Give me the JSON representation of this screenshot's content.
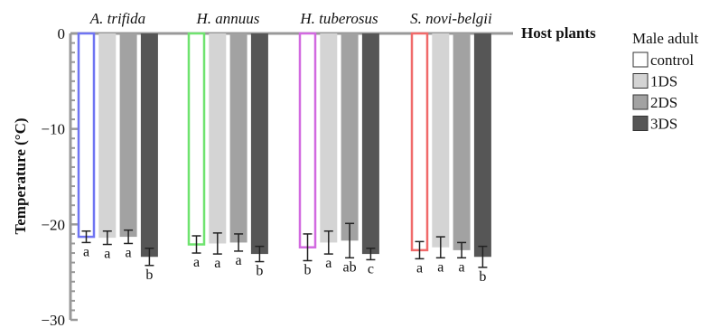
{
  "chart_data": {
    "type": "bar",
    "ylabel": "Temperature (°C)",
    "ylim": [
      -30,
      0
    ],
    "yticks": [
      0,
      -10,
      -20,
      -30
    ],
    "x_axis_label": "Host plants",
    "legend_title": "Male adult",
    "legend_position": "right",
    "grid": false,
    "categories": [
      "A. trifida",
      "H. annuus",
      "H. tuberosus",
      "S. novi-belgii"
    ],
    "series": [
      {
        "name": "control",
        "values": [
          -21.3,
          -22.1,
          -22.4,
          -22.7
        ],
        "errors": [
          0.6,
          0.9,
          1.4,
          0.9
        ]
      },
      {
        "name": "1DS",
        "values": [
          -21.4,
          -22.0,
          -21.9,
          -22.4
        ],
        "errors": [
          0.7,
          1.1,
          1.2,
          1.1
        ]
      },
      {
        "name": "2DS",
        "values": [
          -21.3,
          -21.9,
          -21.7,
          -22.7
        ],
        "errors": [
          0.7,
          0.9,
          1.8,
          0.8
        ]
      },
      {
        "name": "3DS",
        "values": [
          -23.4,
          -23.1,
          -23.1,
          -23.4
        ],
        "errors": [
          0.9,
          0.8,
          0.6,
          1.1
        ]
      }
    ],
    "significance_letters": [
      [
        "a",
        "a",
        "a",
        "b"
      ],
      [
        "a",
        "a",
        "a",
        "b"
      ],
      [
        "b",
        "a",
        "ab",
        "c"
      ],
      [
        "a",
        "a",
        "a",
        "b"
      ]
    ],
    "colors": {
      "control_outlines": [
        "#6f74f2",
        "#6fe36f",
        "#d26ae0",
        "#f06a6a"
      ],
      "1DS": "#d4d4d4",
      "2DS": "#a2a2a2",
      "3DS": "#565656",
      "axis": "#999999",
      "error_bar": "#222222"
    }
  }
}
